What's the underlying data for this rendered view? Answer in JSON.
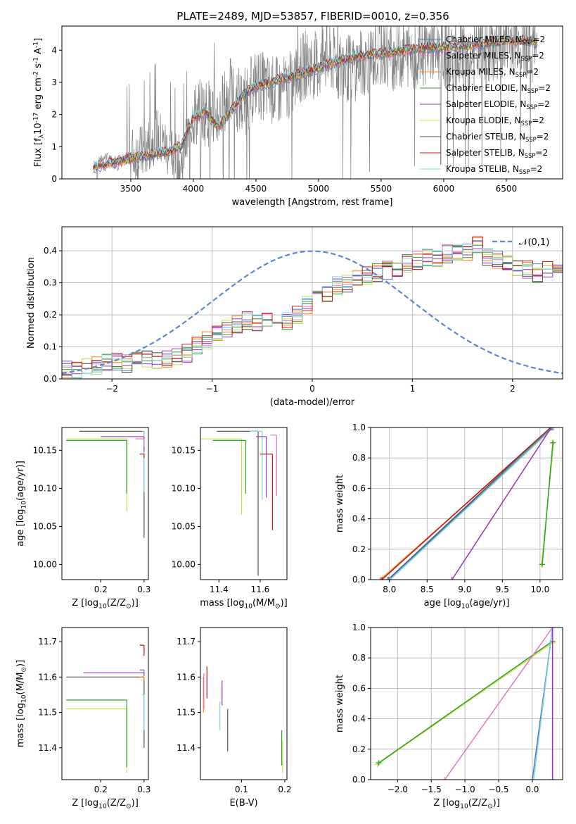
{
  "title": "PLATE=2489, MJD=53857, FIBERID=0010, z=0.356",
  "colors": {
    "chabrier_miles": "#4b7bbf",
    "salpeter_miles": "#e377c2",
    "kroupa_miles": "#ff7f0e",
    "chabrier_elodie": "#2ca02c",
    "salpeter_elodie": "#9b30c0",
    "kroupa_elodie": "#c8e04a",
    "chabrier_stelib": "#555555",
    "salpeter_stelib": "#c01818",
    "kroupa_stelib": "#7fd6e0",
    "normal": "#5b86d6",
    "spectrum": "#808080",
    "grid": "#b0b0b0"
  },
  "legend_models": [
    "Chabrier MILES, N$_{SSP}$=2",
    "Salpeter MILES, N$_{SSP}$=2",
    "Kroupa MILES, N$_{SSP}$=2",
    "Chabrier ELODIE, N$_{SSP}$=2",
    "Salpeter ELODIE, N$_{SSP}$=2",
    "Kroupa ELODIE, N$_{SSP}$=2",
    "Chabrier STELIB, N$_{SSP}$=2",
    "Salpeter STELIB, N$_{SSP}$=2",
    "Kroupa STELIB, N$_{SSP}$=2"
  ],
  "chart_data": [
    {
      "id": "spectrum",
      "type": "line",
      "xlabel": "wavelength [Angstrom, rest frame]",
      "ylabel": "Flux [f$_\\lambda$10$^{-17}$ erg cm$^{-2}$ s$^{-1}$ A$^{-1}$]",
      "xlim": [
        2950,
        6950
      ],
      "ylim": [
        0,
        4.75
      ],
      "xticks": [
        3500,
        4000,
        4500,
        5000,
        5500,
        6000,
        6500
      ],
      "yticks": [
        0,
        1,
        2,
        3,
        4
      ],
      "legend": "top-right",
      "data_x": [
        3200,
        3300,
        3400,
        3500,
        3600,
        3700,
        3800,
        3900,
        4000,
        4100,
        4200,
        4300,
        4400,
        4500,
        4600,
        4700,
        4800,
        4900,
        5000,
        5100,
        5200,
        5300,
        5400,
        5500,
        5600,
        5700,
        5800,
        5900,
        6000,
        6100,
        6200,
        6300,
        6400,
        6500,
        6600,
        6700,
        6750
      ],
      "data_y": [
        0.4,
        0.7,
        0.4,
        0.8,
        0.8,
        1.4,
        0.9,
        0.4,
        2.0,
        2.1,
        2.0,
        2.7,
        2.3,
        3.0,
        2.8,
        2.7,
        3.0,
        3.6,
        3.5,
        3.7,
        3.4,
        3.5,
        3.7,
        3.9,
        3.8,
        3.9,
        3.9,
        4.1,
        3.9,
        3.8,
        3.8,
        3.9,
        4.0,
        4.3,
        4.4,
        4.1,
        4.0
      ],
      "model_x": [
        3200,
        3400,
        3600,
        3800,
        3900,
        4000,
        4100,
        4200,
        4400,
        4500,
        4700,
        4900,
        5100,
        5300,
        5500,
        5700,
        5900,
        6100,
        6300,
        6500,
        6700,
        6750
      ],
      "model_y": [
        0.35,
        0.55,
        0.7,
        0.85,
        1.0,
        1.9,
        2.1,
        1.6,
        2.6,
        2.9,
        3.1,
        3.3,
        3.6,
        3.8,
        3.9,
        4.0,
        4.1,
        4.1,
        4.2,
        4.3,
        4.3,
        4.2
      ]
    },
    {
      "id": "residuals",
      "type": "bar",
      "xlabel": "(data-model)/error",
      "ylabel": "Normed distribution",
      "xlim": [
        -2.5,
        2.5
      ],
      "ylim": [
        0,
        0.475
      ],
      "xticks": [
        -2,
        -1,
        0,
        1,
        2
      ],
      "yticks": [
        0.0,
        0.1,
        0.2,
        0.3,
        0.4
      ],
      "grid": true,
      "legend": "top-right",
      "legend_label": "$\\mathcal{N}(0,1)$",
      "bin_edges_start": -2.5,
      "bin_width": 0.1,
      "values": [
        0.03,
        0.03,
        0.035,
        0.04,
        0.05,
        0.055,
        0.05,
        0.055,
        0.06,
        0.055,
        0.06,
        0.065,
        0.08,
        0.1,
        0.12,
        0.14,
        0.16,
        0.17,
        0.18,
        0.17,
        0.19,
        0.17,
        0.18,
        0.2,
        0.23,
        0.25,
        0.27,
        0.29,
        0.3,
        0.31,
        0.32,
        0.33,
        0.34,
        0.35,
        0.36,
        0.37,
        0.38,
        0.38,
        0.39,
        0.4,
        0.4,
        0.42,
        0.38,
        0.37,
        0.36,
        0.35,
        0.34,
        0.33,
        0.34,
        0.33,
        0.34,
        0.35,
        0.33,
        0.3,
        0.26,
        0.24,
        0.2,
        0.2,
        0.19,
        0.19,
        0.18,
        0.17,
        0.16,
        0.15,
        0.14,
        0.13,
        0.12,
        0.11,
        0.1,
        0.09,
        0.08,
        0.07
      ]
    },
    {
      "id": "age_vs_z",
      "type": "scatter",
      "xlabel": "Z [log$_{10}$($Z/Z_\\odot$)]",
      "ylabel": "age  [log$_{10}$($age/yr$)]",
      "xlim": [
        0.11,
        0.31
      ],
      "ylim": [
        9.98,
        10.18
      ],
      "xticks": [
        0.2,
        0.3
      ],
      "yticks": [
        10.0,
        10.05,
        10.1,
        10.15
      ],
      "points": [
        {
          "x": 0.3,
          "y": 10.175,
          "xerr": 0.15,
          "yerr": 0.14,
          "c": "chabrier_stelib"
        },
        {
          "x": 0.3,
          "y": 10.175,
          "xerr": 0.005,
          "yerr": 0.08,
          "c": "kroupa_stelib"
        },
        {
          "x": 0.3,
          "y": 10.168,
          "xerr": 0.1,
          "yerr": 0.02,
          "c": "salpeter_elodie"
        },
        {
          "x": 0.3,
          "y": 10.165,
          "xerr": 0.02,
          "yerr": 0.01,
          "c": "salpeter_miles"
        },
        {
          "x": 0.3,
          "y": 10.145,
          "xerr": 0.01,
          "yerr": 0.005,
          "c": "salpeter_stelib"
        },
        {
          "x": 0.26,
          "y": 10.165,
          "xerr": 0.14,
          "yerr": 0.095,
          "c": "kroupa_elodie"
        },
        {
          "x": 0.26,
          "y": 10.163,
          "xerr": 0.14,
          "yerr": 0.07,
          "c": "chabrier_elodie"
        }
      ]
    },
    {
      "id": "age_vs_mass",
      "type": "scatter",
      "xlabel": "mass [log$_{10}$($M/M_\\odot$)]",
      "ylabel": "",
      "xlim": [
        11.31,
        11.73
      ],
      "ylim": [
        9.98,
        10.18
      ],
      "xticks": [
        11.4,
        11.6
      ],
      "yticks": [
        10.0,
        10.05,
        10.1,
        10.15
      ],
      "points": [
        {
          "x": 11.59,
          "y": 10.175,
          "xerr": 0.2,
          "yerr": 0.19,
          "c": "chabrier_stelib"
        },
        {
          "x": 11.61,
          "y": 10.175,
          "xerr": 0.06,
          "yerr": 0.09,
          "c": "kroupa_stelib"
        },
        {
          "x": 11.63,
          "y": 10.168,
          "xerr": 0.05,
          "yerr": 0.08,
          "c": "salpeter_elodie"
        },
        {
          "x": 11.68,
          "y": 10.17,
          "xerr": 0.03,
          "yerr": 0.08,
          "c": "salpeter_miles"
        },
        {
          "x": 11.66,
          "y": 10.145,
          "xerr": 0.06,
          "yerr": 0.1,
          "c": "salpeter_stelib"
        },
        {
          "x": 11.51,
          "y": 10.165,
          "xerr": 0.2,
          "yerr": 0.1,
          "c": "kroupa_elodie"
        },
        {
          "x": 11.53,
          "y": 10.163,
          "xerr": 0.16,
          "yerr": 0.07,
          "c": "chabrier_elodie"
        }
      ]
    },
    {
      "id": "weight_vs_age",
      "type": "line",
      "xlabel": "age  [log$_{10}$($age/yr$)]",
      "ylabel": "mass weight",
      "xlim": [
        7.75,
        10.3
      ],
      "ylim": [
        0,
        1.0
      ],
      "xticks": [
        8.0,
        8.5,
        9.0,
        9.5,
        10.0
      ],
      "yticks": [
        0.0,
        0.2,
        0.4,
        0.6,
        0.8,
        1.0
      ],
      "grid": true,
      "series": [
        {
          "c": "kroupa_miles",
          "x": [
            7.88,
            10.16
          ],
          "y": [
            0.0,
            1.0
          ]
        },
        {
          "c": "salpeter_stelib",
          "x": [
            7.9,
            10.14
          ],
          "y": [
            0.0,
            1.0
          ]
        },
        {
          "c": "chabrier_stelib",
          "x": [
            7.98,
            10.14
          ],
          "y": [
            0.0,
            1.0
          ]
        },
        {
          "c": "chabrier_miles",
          "x": [
            7.99,
            10.17
          ],
          "y": [
            0.0,
            1.0
          ]
        },
        {
          "c": "kroupa_stelib",
          "x": [
            8.01,
            10.18
          ],
          "y": [
            0.0,
            1.0
          ]
        },
        {
          "c": "salpeter_elodie",
          "x": [
            8.83,
            10.15
          ],
          "y": [
            0.0,
            1.0
          ]
        },
        {
          "c": "kroupa_elodie",
          "x": [
            10.02,
            10.18
          ],
          "y": [
            0.1,
            0.9
          ]
        },
        {
          "c": "chabrier_elodie",
          "x": [
            10.03,
            10.17
          ],
          "y": [
            0.1,
            0.9
          ]
        }
      ]
    },
    {
      "id": "mass_vs_z",
      "type": "scatter",
      "xlabel": "Z [log$_{10}$($Z/Z_\\odot$)]",
      "ylabel": "mass [log$_{10}$($M/M_\\odot$)]",
      "xlim": [
        0.11,
        0.31
      ],
      "ylim": [
        11.31,
        11.74
      ],
      "xticks": [
        0.2,
        0.3
      ],
      "yticks": [
        11.4,
        11.5,
        11.6,
        11.7
      ],
      "points": [
        {
          "x": 0.3,
          "y": 11.6,
          "xerr": 0.18,
          "yerr": 0.2,
          "c": "chabrier_stelib"
        },
        {
          "x": 0.3,
          "y": 11.612,
          "xerr": 0.14,
          "yerr": 0.01,
          "c": "salpeter_elodie"
        },
        {
          "x": 0.3,
          "y": 11.62,
          "xerr": 0.01,
          "yerr": 0.01,
          "c": "chabrier_miles"
        },
        {
          "x": 0.3,
          "y": 11.6,
          "xerr": 0.01,
          "yerr": 0.01,
          "c": "kroupa_miles"
        },
        {
          "x": 0.3,
          "y": 11.69,
          "xerr": 0.01,
          "yerr": 0.02,
          "c": "salpeter_miles"
        },
        {
          "x": 0.3,
          "y": 11.69,
          "xerr": 0.01,
          "yerr": 0.03,
          "c": "salpeter_stelib"
        },
        {
          "x": 0.3,
          "y": 11.55,
          "xerr": 0.005,
          "yerr": 0.1,
          "c": "kroupa_stelib"
        },
        {
          "x": 0.26,
          "y": 11.51,
          "xerr": 0.14,
          "yerr": 0.18,
          "c": "kroupa_elodie"
        },
        {
          "x": 0.26,
          "y": 11.535,
          "xerr": 0.14,
          "yerr": 0.19,
          "c": "chabrier_elodie"
        }
      ]
    },
    {
      "id": "mass_vs_ebv",
      "type": "scatter",
      "xlabel": "E(B-V)",
      "ylabel": "",
      "xlim": [
        0.005,
        0.205
      ],
      "ylim": [
        11.31,
        11.74
      ],
      "xticks": [
        0.1,
        0.2
      ],
      "yticks": [
        11.4,
        11.5,
        11.6,
        11.7
      ],
      "points": [
        {
          "x": 0.012,
          "y": 11.6,
          "xerr": 0.0,
          "yerr": 0.1,
          "c": "kroupa_miles"
        },
        {
          "x": 0.013,
          "y": 11.61,
          "xerr": 0.0,
          "yerr": 0.1,
          "c": "salpeter_miles"
        },
        {
          "x": 0.02,
          "y": 11.63,
          "xerr": 0.0,
          "yerr": 0.09,
          "c": "salpeter_stelib"
        },
        {
          "x": 0.05,
          "y": 11.53,
          "xerr": 0.0,
          "yerr": 0.08,
          "c": "kroupa_stelib"
        },
        {
          "x": 0.055,
          "y": 11.59,
          "xerr": 0.0,
          "yerr": 0.07,
          "c": "salpeter_elodie"
        },
        {
          "x": 0.068,
          "y": 11.51,
          "xerr": 0.0,
          "yerr": 0.12,
          "c": "chabrier_stelib"
        },
        {
          "x": 0.193,
          "y": 11.45,
          "xerr": 0.0,
          "yerr": 0.1,
          "c": "chabrier_elodie"
        },
        {
          "x": 0.195,
          "y": 11.42,
          "xerr": 0.0,
          "yerr": 0.09,
          "c": "kroupa_elodie"
        }
      ]
    },
    {
      "id": "weight_vs_z",
      "type": "line",
      "xlabel": "Z [log$_{10}$($Z/Z_\\odot$)]",
      "ylabel": "mass weight",
      "xlim": [
        -2.4,
        0.45
      ],
      "ylim": [
        0,
        1.0
      ],
      "xticks": [
        -2.0,
        -1.5,
        -1.0,
        -0.5,
        0.0
      ],
      "yticks": [
        0.0,
        0.2,
        0.4,
        0.6,
        0.8,
        1.0
      ],
      "grid": true,
      "series": [
        {
          "c": "kroupa_elodie",
          "x": [
            -2.3,
            0.3
          ],
          "y": [
            0.1,
            0.9
          ]
        },
        {
          "c": "chabrier_elodie",
          "x": [
            -2.28,
            0.3
          ],
          "y": [
            0.11,
            0.91
          ]
        },
        {
          "c": "salpeter_miles",
          "x": [
            -1.3,
            0.3
          ],
          "y": [
            0.0,
            1.0
          ]
        },
        {
          "c": "chabrier_miles",
          "x": [
            0.0,
            0.3
          ],
          "y": [
            0.0,
            1.0
          ]
        },
        {
          "c": "kroupa_stelib",
          "x": [
            0.02,
            0.3
          ],
          "y": [
            0.0,
            1.0
          ]
        },
        {
          "c": "salpeter_elodie",
          "x": [
            0.3,
            0.3
          ],
          "y": [
            0.0,
            1.0
          ]
        }
      ]
    }
  ]
}
